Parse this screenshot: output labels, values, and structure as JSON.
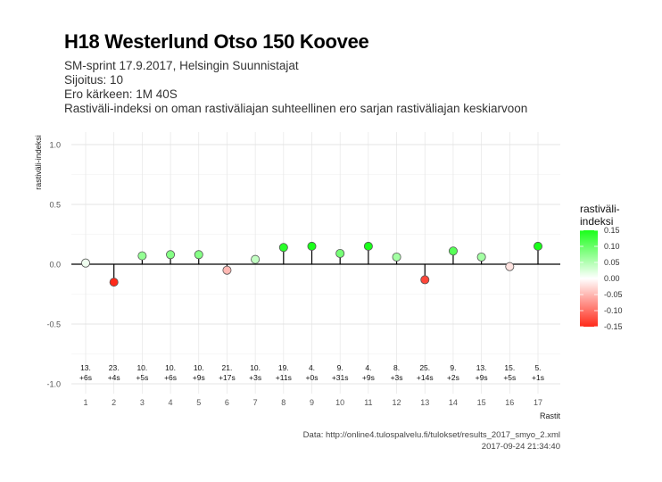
{
  "header": {
    "title": "H18 Westerlund Otso 150 Koovee",
    "subtitle_lines": [
      "SM-sprint 17.9.2017, Helsingin Suunnistajat",
      "Sijoitus: 10",
      "Ero kärkeen: 1M 40S",
      "Rastiväli-indeksi on oman rastiväliajan suhteellinen ero sarjan rastiväliajan keskiarvoon"
    ]
  },
  "caption": {
    "source": "Data: http://online4.tulospalvelu.fi/tulokset/results_2017_smyo_2.xml",
    "timestamp": "2017-09-24 21:34:40"
  },
  "chart_data": {
    "type": "scatter",
    "style": "lollipop",
    "xlabel": "Rastit",
    "ylabel": "rastiväli-indeksi",
    "ylim": [
      -1.0,
      1.0
    ],
    "yticks": [
      -1.0,
      -0.5,
      0.0,
      0.5,
      1.0
    ],
    "ytick_labels": [
      "-1.0",
      "-0.5",
      "0.0",
      "0.5",
      "1.0"
    ],
    "x": [
      1,
      2,
      3,
      4,
      5,
      6,
      7,
      8,
      9,
      10,
      11,
      12,
      13,
      14,
      15,
      16,
      17
    ],
    "values": [
      0.01,
      -0.15,
      0.07,
      0.08,
      0.08,
      -0.05,
      0.04,
      0.14,
      0.15,
      0.09,
      0.15,
      0.06,
      -0.13,
      0.11,
      0.06,
      -0.02,
      0.15
    ],
    "point_labels": [
      [
        "13.",
        "+6s"
      ],
      [
        "23.",
        "+4s"
      ],
      [
        "10.",
        "+5s"
      ],
      [
        "10.",
        "+6s"
      ],
      [
        "10.",
        "+9s"
      ],
      [
        "21.",
        "+17s"
      ],
      [
        "10.",
        "+3s"
      ],
      [
        "19.",
        "+11s"
      ],
      [
        "4.",
        "+0s"
      ],
      [
        "9.",
        "+31s"
      ],
      [
        "4.",
        "+9s"
      ],
      [
        "8.",
        "+3s"
      ],
      [
        "25.",
        "+14s"
      ],
      [
        "9.",
        "+2s"
      ],
      [
        "13.",
        "+9s"
      ],
      [
        "15.",
        "+5s"
      ],
      [
        "5.",
        "+1s"
      ]
    ],
    "grid": true,
    "legend": {
      "title_lines": [
        "rastiväli-",
        "indeksi"
      ],
      "placement": "right",
      "ticks": [
        0.15,
        0.1,
        0.05,
        0.0,
        -0.05,
        -0.1,
        -0.15
      ],
      "tick_labels": [
        "0.15",
        "0.10",
        "0.05",
        "0.00",
        "-0.05",
        "-0.10",
        "-0.15"
      ],
      "range": [
        -0.15,
        0.15
      ],
      "colors": {
        "low": "#ff2a1a",
        "mid": "#ffffff",
        "high": "#1aff1a"
      }
    }
  }
}
